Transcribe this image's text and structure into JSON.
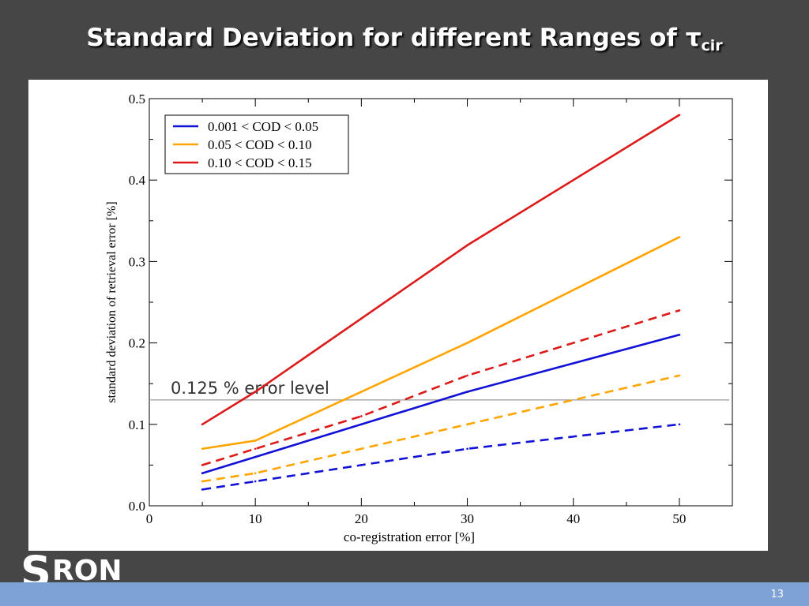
{
  "slide": {
    "title_main": "Standard Deviation for different Ranges of τ",
    "title_sub": "cir",
    "page_number": "13",
    "logo_s": "S",
    "logo_rest": "RON"
  },
  "colors": {
    "blue": "#1212d6",
    "orange": "#ffa500",
    "red": "#dc1a1a"
  },
  "chart_data": {
    "type": "line",
    "xlabel": "co-registration error [%]",
    "ylabel": "standard deviation of retrieval error [%]",
    "xlim": [
      0,
      55
    ],
    "ylim": [
      0,
      0.5
    ],
    "xticks": [
      "0",
      "10",
      "20",
      "30",
      "40",
      "50"
    ],
    "yticks": [
      "0.0",
      "0.1",
      "0.2",
      "0.3",
      "0.4",
      "0.5"
    ],
    "grid": false,
    "legend_position": "top-left",
    "legend": [
      {
        "label": "0.001 < COD < 0.05",
        "color": "#1212d6"
      },
      {
        "label": "0.05 < COD < 0.10",
        "color": "#ffa500"
      },
      {
        "label": "0.10 < COD < 0.15",
        "color": "#dc1a1a"
      }
    ],
    "series": [
      {
        "color": "#1212d6",
        "style": "solid",
        "x": [
          5,
          10,
          20,
          30,
          50
        ],
        "y": [
          0.04,
          0.06,
          0.1,
          0.14,
          0.21
        ]
      },
      {
        "color": "#ffa500",
        "style": "solid",
        "x": [
          5,
          10,
          20,
          30,
          50
        ],
        "y": [
          0.07,
          0.08,
          0.14,
          0.2,
          0.33
        ]
      },
      {
        "color": "#dc1a1a",
        "style": "solid",
        "x": [
          5,
          10,
          20,
          30,
          50
        ],
        "y": [
          0.1,
          0.14,
          0.23,
          0.32,
          0.48
        ]
      },
      {
        "color": "#1212d6",
        "style": "dashed",
        "x": [
          5,
          10,
          20,
          30,
          50
        ],
        "y": [
          0.02,
          0.03,
          0.05,
          0.07,
          0.1
        ]
      },
      {
        "color": "#ffa500",
        "style": "dashed",
        "x": [
          5,
          10,
          20,
          30,
          50
        ],
        "y": [
          0.03,
          0.04,
          0.07,
          0.1,
          0.16
        ]
      },
      {
        "color": "#dc1a1a",
        "style": "dashed",
        "x": [
          5,
          10,
          20,
          30,
          50
        ],
        "y": [
          0.05,
          0.07,
          0.11,
          0.16,
          0.24
        ]
      }
    ],
    "reference_line": {
      "y": 0.13,
      "label": "0.125 % error level"
    }
  }
}
